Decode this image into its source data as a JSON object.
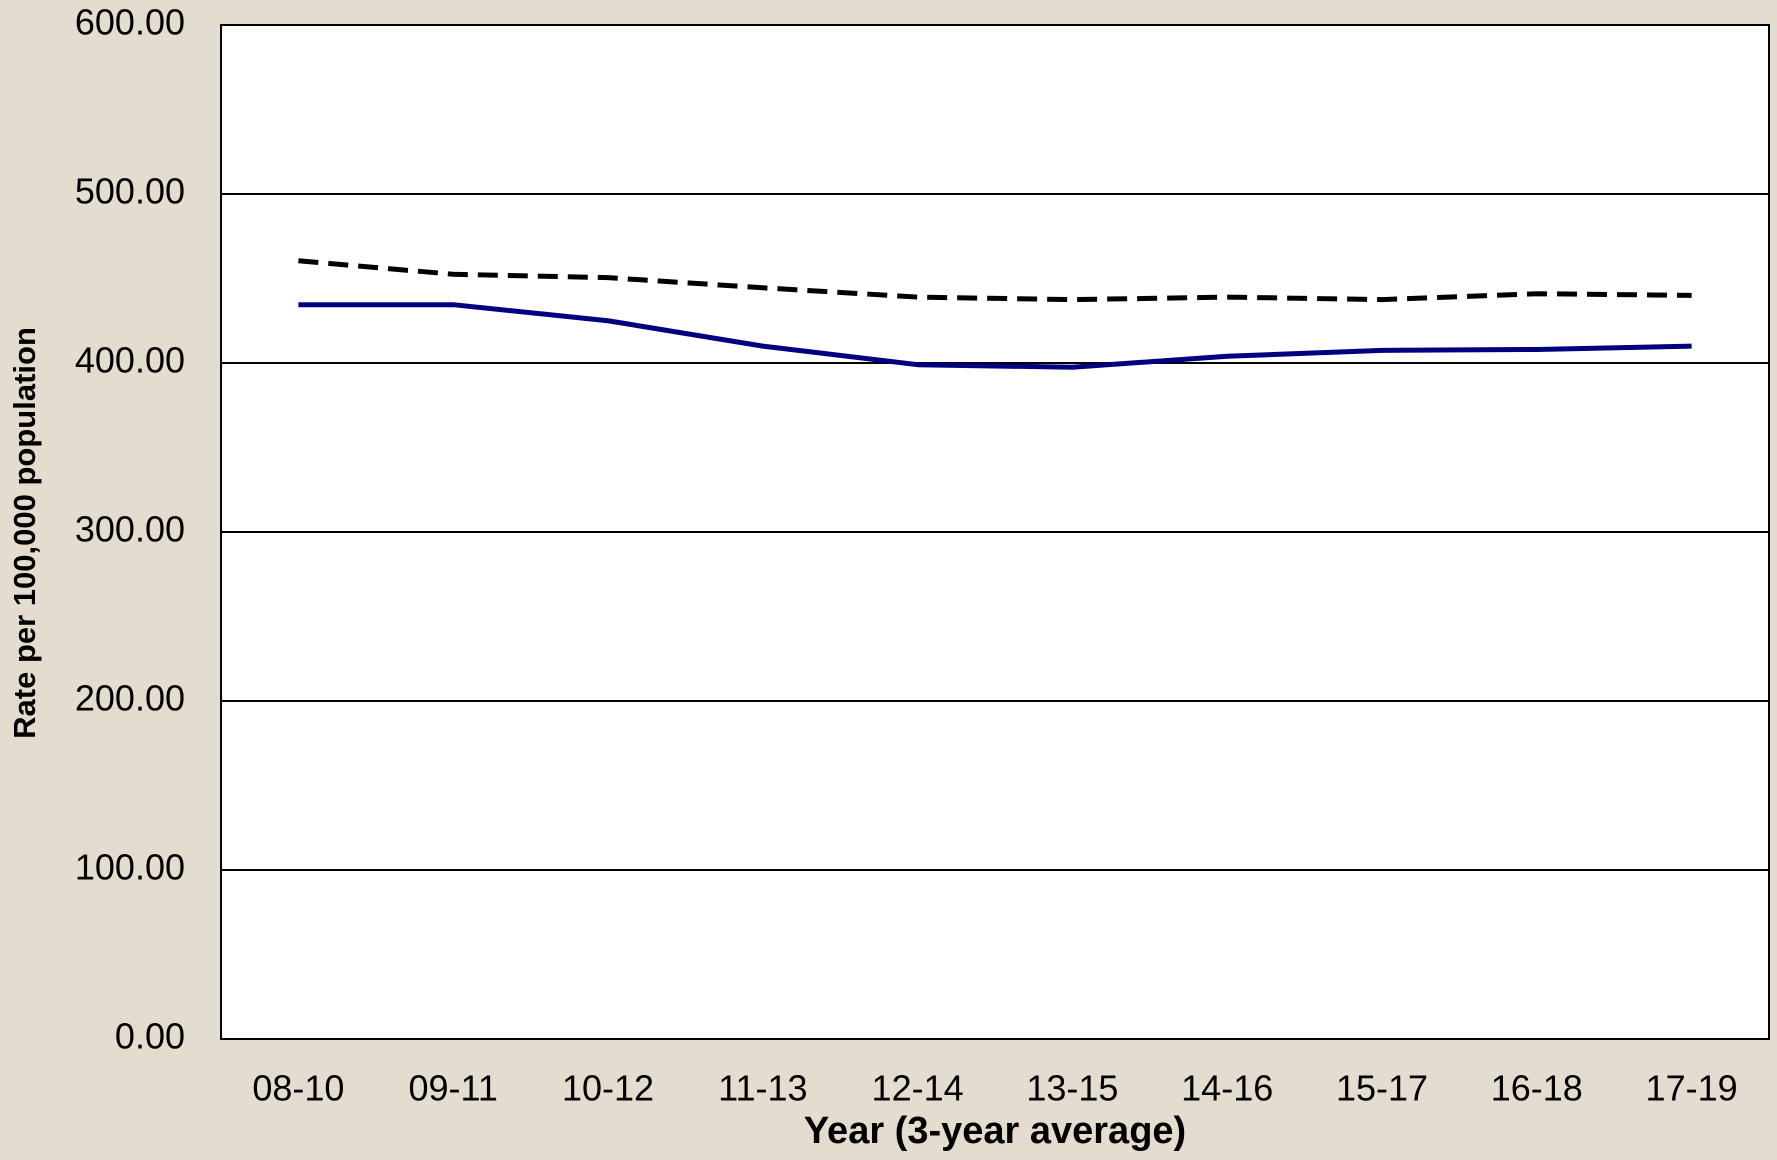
{
  "chart_data": {
    "type": "line",
    "xlabel": "Year (3-year average)",
    "ylabel": "Rate per 100,000 population",
    "categories": [
      "08-10",
      "09-11",
      "10-12",
      "11-13",
      "12-14",
      "13-15",
      "14-16",
      "15-17",
      "16-18",
      "17-19"
    ],
    "series": [
      {
        "color": "#000000",
        "style": "dashed",
        "values": [
          460.5,
          452.5,
          450.5,
          444.5,
          439,
          437.5,
          439,
          437.5,
          441,
          440
        ]
      },
      {
        "color": "#000080",
        "style": "solid",
        "values": [
          434.5,
          434.5,
          425,
          410,
          399,
          397.5,
          404,
          407.5,
          408,
          410
        ]
      }
    ],
    "ylim": [
      0,
      600
    ],
    "yticks": [
      {
        "value": 0,
        "label": "0.00"
      },
      {
        "value": 100,
        "label": "100.00"
      },
      {
        "value": 200,
        "label": "200.00"
      },
      {
        "value": 300,
        "label": "300.00"
      },
      {
        "value": 400,
        "label": "400.00"
      },
      {
        "value": 500,
        "label": "500.00"
      },
      {
        "value": 600,
        "label": "600.00"
      }
    ],
    "grid": true
  }
}
